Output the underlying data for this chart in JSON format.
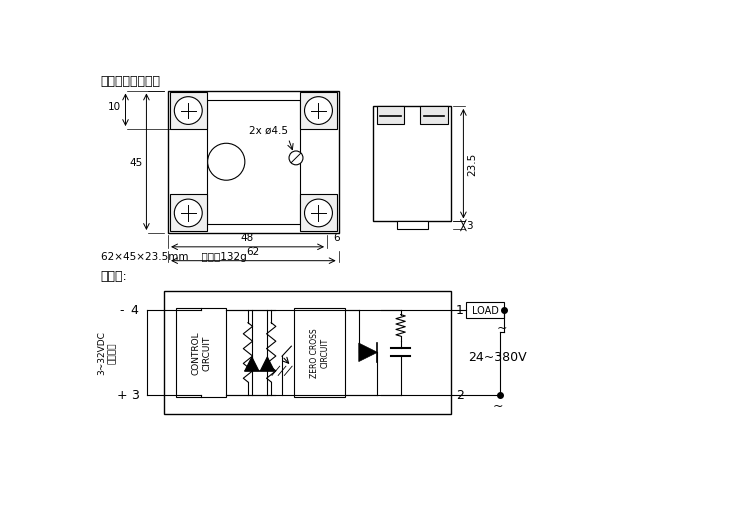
{
  "title_dims": "外形尺寸及重量：",
  "title_wiring": "接线图:",
  "dims_text": "62×45×23.5mm    重量：132g",
  "bg_color": "#ffffff",
  "line_color": "#000000",
  "label_2x": "2x ø4.5",
  "dim_45": "45",
  "dim_10": "10",
  "dim_48": "48",
  "dim_6": "6",
  "dim_62": "62",
  "dim_23_5": "23.5",
  "dim_3": "3",
  "ctrl_line1": "3~32VDC",
  "ctrl_line2": "控制信号",
  "control_circuit": "CONTROL\nCIRCUIT",
  "zero_cross": "ZERO CROSS\nCIRCUIT",
  "load_label": "LOAD",
  "voltage": "24~380V",
  "pin1": "1",
  "pin2": "2",
  "pin3": "3",
  "pin4": "4",
  "pin_neg": "-",
  "pin_pos": "+"
}
